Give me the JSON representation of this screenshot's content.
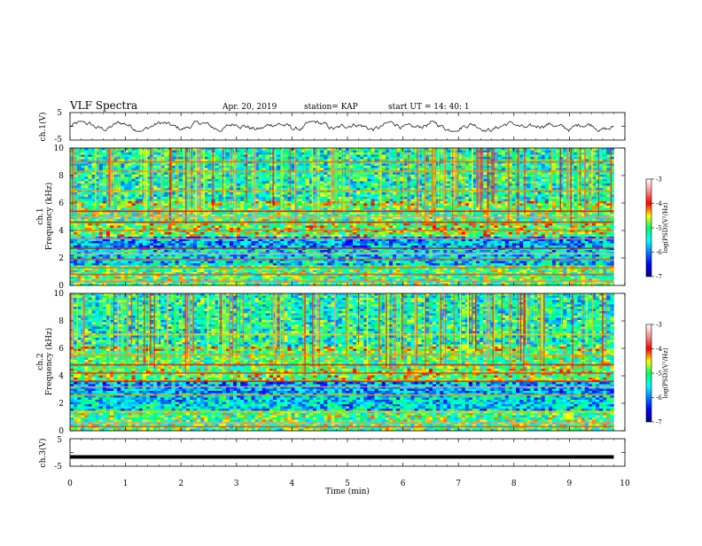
{
  "header": {
    "title": "VLF Spectra",
    "date": "Apr. 20, 2019",
    "station": "station= KAP",
    "start": "start  UT =   14: 40: 1"
  },
  "chart_data": [
    {
      "id": "ch1-waveform",
      "type": "line",
      "ylabel": "ch.1(V)",
      "ylim": [
        -5,
        5
      ],
      "y_ticks": [
        "5",
        "-5"
      ],
      "xlim": [
        0,
        10
      ],
      "approx_range_v": [
        -1.8,
        1.8
      ],
      "data_extent_min": 9.8
    },
    {
      "id": "ch1-spectrogram",
      "type": "heatmap",
      "ylabel_top": "ch.1",
      "ylabel": "Frequency (kHz)",
      "ylim": [
        0,
        10
      ],
      "y_ticks": [
        "0",
        "2",
        "4",
        "6",
        "8",
        "10"
      ],
      "xlim": [
        0,
        10
      ],
      "data_extent_min": 9.8,
      "color_scale": {
        "label": "log(PSD)(V²/Hz)",
        "range": [
          -7,
          -3
        ],
        "ticks": [
          "-3",
          "-4",
          "-5",
          "-6",
          "-7"
        ]
      },
      "bands_khz": [
        {
          "f": 0.3,
          "level": -3.6
        },
        {
          "f": 0.8,
          "level": -3.8
        },
        {
          "f": 1.3,
          "level": -4.2
        },
        {
          "f": 1.9,
          "level": -3.8
        },
        {
          "f": 2.3,
          "level": -3.4
        },
        {
          "f": 2.7,
          "level": -4.0
        },
        {
          "f": 3.4,
          "level": -3.6
        },
        {
          "f": 4.0,
          "level": -4.2
        },
        {
          "f": 4.6,
          "level": -4.0
        },
        {
          "f": 5.0,
          "level": -3.5
        },
        {
          "f": 5.4,
          "level": -4.0
        },
        {
          "f": 6.9,
          "level": -4.3
        },
        {
          "f": 8.3,
          "level": -4.3
        },
        {
          "f": 9.0,
          "level": -4.2
        }
      ]
    },
    {
      "id": "ch2-spectrogram",
      "type": "heatmap",
      "ylabel_top": "ch.2",
      "ylabel": "Frequency (kHz)",
      "ylim": [
        0,
        10
      ],
      "y_ticks": [
        "0",
        "2",
        "4",
        "6",
        "8",
        "10"
      ],
      "xlim": [
        0,
        10
      ],
      "data_extent_min": 9.8,
      "color_scale": {
        "label": "log(PSD)(V²/Hz)",
        "range": [
          -7,
          -3
        ],
        "ticks": [
          "-3",
          "-4",
          "-5",
          "-6",
          "-7"
        ]
      },
      "bands_khz": [
        {
          "f": 0.3,
          "level": -3.8
        },
        {
          "f": 0.6,
          "level": -3.5
        },
        {
          "f": 1.4,
          "level": -4.4
        },
        {
          "f": 2.6,
          "level": -4.3
        },
        {
          "f": 3.2,
          "level": -3.5
        },
        {
          "f": 3.6,
          "level": -4.0
        },
        {
          "f": 4.2,
          "level": -4.1
        },
        {
          "f": 4.8,
          "level": -4.0
        },
        {
          "f": 5.5,
          "level": -4.3
        },
        {
          "f": 7.0,
          "level": -4.4
        }
      ]
    },
    {
      "id": "ch3-waveform",
      "type": "line",
      "ylabel": "ch.3(V)",
      "ylim": [
        -5,
        5
      ],
      "y_ticks": [
        "5",
        "-5"
      ],
      "xlim": [
        0,
        10
      ],
      "approx_level_v": -1.6,
      "data_extent_min": 9.8
    }
  ],
  "xaxis": {
    "label": "Time (min)",
    "ticks": [
      "0",
      "1",
      "2",
      "3",
      "4",
      "5",
      "6",
      "7",
      "8",
      "9",
      "10"
    ],
    "range": [
      0,
      10
    ]
  }
}
